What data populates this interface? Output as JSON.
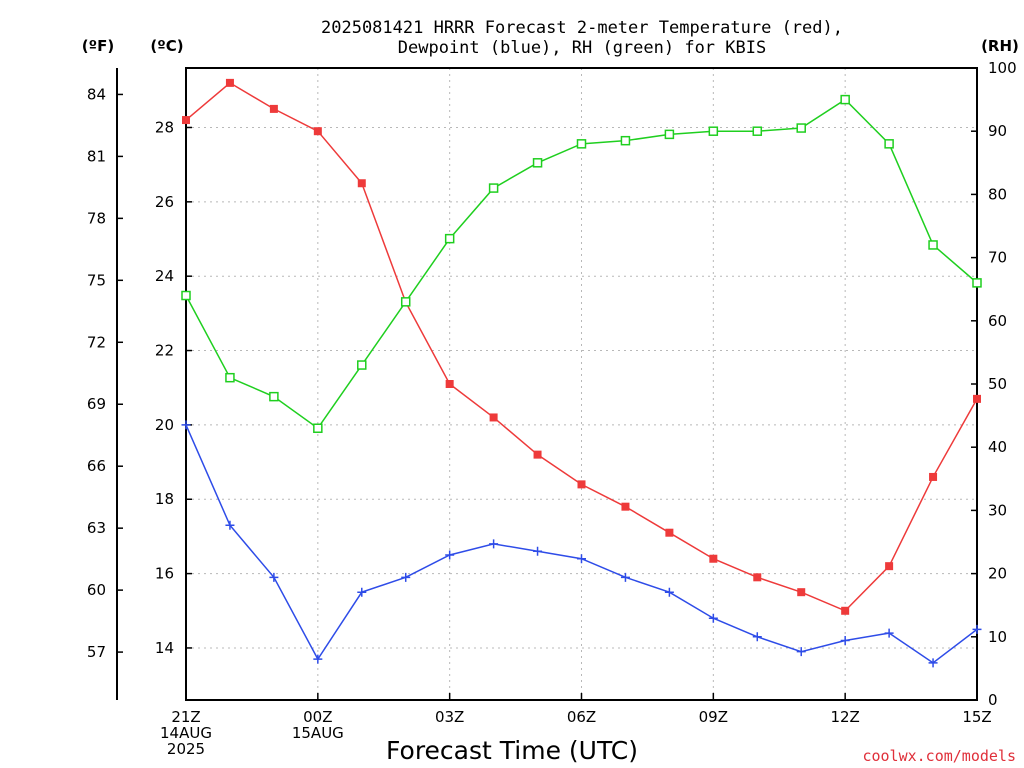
{
  "chart_data": {
    "type": "line",
    "title_lines": [
      "2025081421 HRRR Forecast 2-meter Temperature (red),",
      "Dewpoint (blue), RH (green) for KBIS"
    ],
    "xlabel": "Forecast Time (UTC)",
    "credit": "coolwx.com/models",
    "units": {
      "fahrenheit": "(ºF)",
      "celsius": "(ºC)",
      "rh": "(RH)"
    },
    "x_hours": [
      0,
      1,
      2,
      3,
      4,
      5,
      6,
      7,
      8,
      9,
      10,
      11,
      12,
      13,
      14,
      15,
      16,
      17,
      18
    ],
    "x_ticks": [
      {
        "hour": 0,
        "lines": [
          "21Z",
          "14AUG",
          "2025"
        ]
      },
      {
        "hour": 3,
        "lines": [
          "00Z",
          "15AUG"
        ]
      },
      {
        "hour": 6,
        "lines": [
          "03Z"
        ]
      },
      {
        "hour": 9,
        "lines": [
          "06Z"
        ]
      },
      {
        "hour": 12,
        "lines": [
          "09Z"
        ]
      },
      {
        "hour": 15,
        "lines": [
          "12Z"
        ]
      },
      {
        "hour": 18,
        "lines": [
          "15Z"
        ]
      }
    ],
    "celsius_axis": {
      "range": [
        12.6,
        29.6
      ],
      "ticks": [
        14,
        16,
        18,
        20,
        22,
        24,
        26,
        28
      ]
    },
    "fahrenheit_ticks": [
      57,
      60,
      63,
      66,
      69,
      72,
      75,
      78,
      81,
      84
    ],
    "rh_axis": {
      "range": [
        0,
        100
      ],
      "ticks": [
        0,
        10,
        20,
        30,
        40,
        50,
        60,
        70,
        80,
        90,
        100
      ]
    },
    "series": [
      {
        "name": "Temperature",
        "color": "#ee3a3a",
        "marker": "filled-square",
        "axis": "celsius",
        "values": [
          28.2,
          29.2,
          28.5,
          27.9,
          26.5,
          23.3,
          21.1,
          20.2,
          19.2,
          18.4,
          17.8,
          17.1,
          16.4,
          15.9,
          15.5,
          15.0,
          16.2,
          18.6,
          20.7
        ]
      },
      {
        "name": "Dewpoint",
        "color": "#2e4ce8",
        "marker": "plus",
        "axis": "celsius",
        "values": [
          20.0,
          17.3,
          15.9,
          13.7,
          15.5,
          15.9,
          16.5,
          16.8,
          16.6,
          16.4,
          15.9,
          15.5,
          14.8,
          14.3,
          13.9,
          14.2,
          14.4,
          13.6,
          14.5
        ]
      },
      {
        "name": "RH",
        "color": "#1fcf1f",
        "marker": "open-square",
        "axis": "rh",
        "values": [
          64,
          51,
          48,
          43,
          53,
          63,
          73,
          81,
          85,
          88,
          88.5,
          89.5,
          90,
          90,
          90.5,
          95,
          88,
          72,
          66
        ]
      }
    ]
  }
}
